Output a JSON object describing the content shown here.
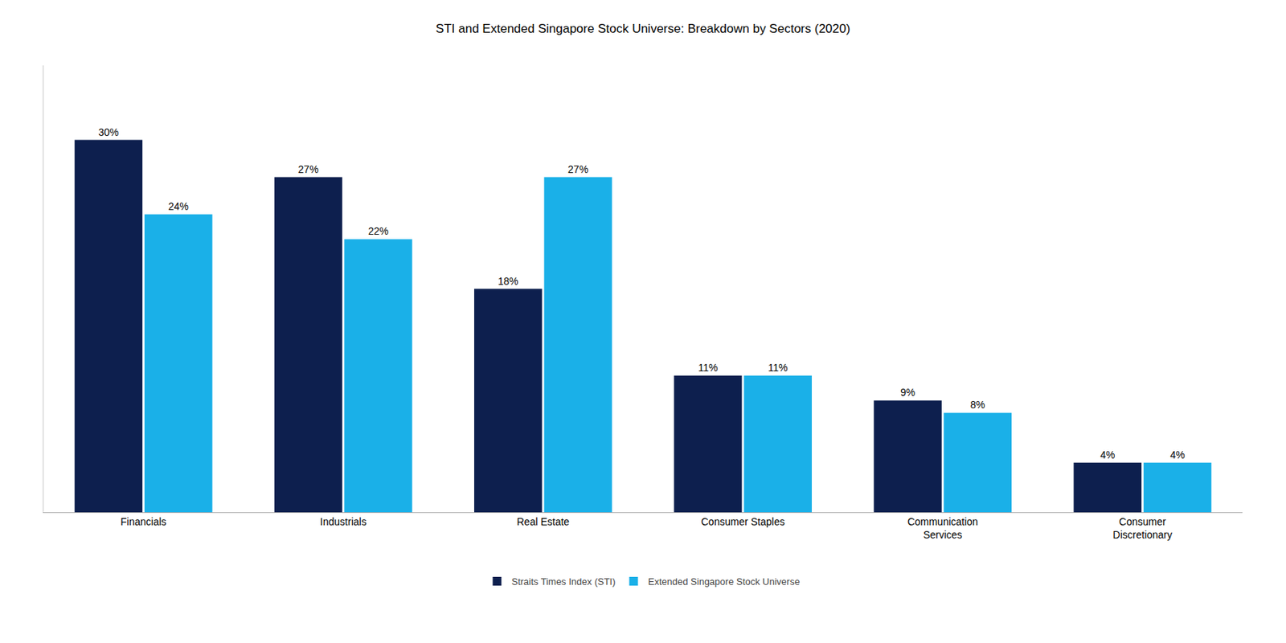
{
  "chart_data": {
    "type": "bar",
    "title": "STI and Extended Singapore Stock Universe: Breakdown by Sectors (2020)",
    "categories": [
      "Financials",
      "Industrials",
      "Real Estate",
      "Consumer Staples",
      "Communication\nServices",
      "Consumer\nDiscretionary"
    ],
    "series": [
      {
        "name": "Straits Times Index (STI)",
        "color": "#0d1f4e",
        "values": [
          30,
          27,
          18,
          11,
          9,
          4
        ],
        "value_labels": [
          "30%",
          "27%",
          "18%",
          "11%",
          "9%",
          "4%"
        ]
      },
      {
        "name": "Extended Singapore Stock Universe",
        "color": "#1ab0e8",
        "values": [
          24,
          22,
          27,
          11,
          8,
          4
        ],
        "value_labels": [
          "24%",
          "22%",
          "27%",
          "11%",
          "8%",
          "4%"
        ]
      }
    ],
    "ylim": [
      0,
      36
    ],
    "grid": false,
    "legend": "bottom",
    "data_labels": true,
    "tick_labels": "x"
  }
}
